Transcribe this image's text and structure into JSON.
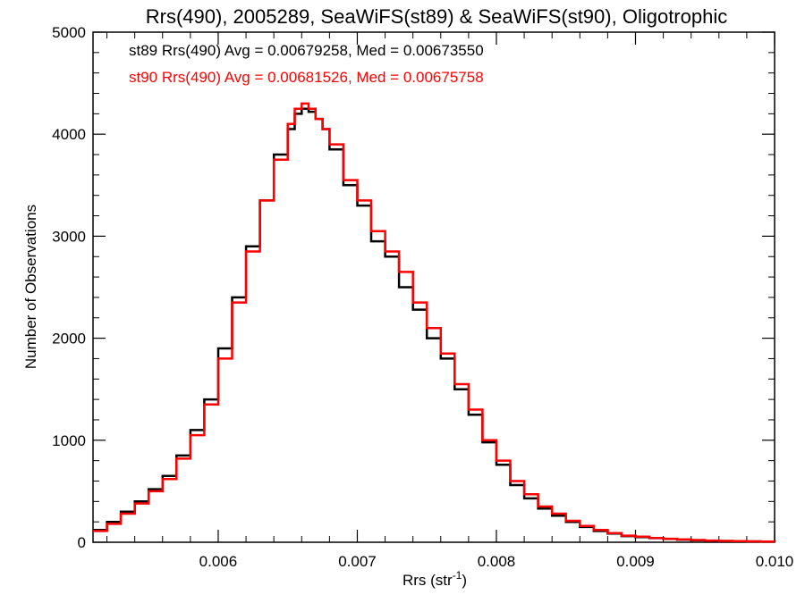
{
  "chart_data": {
    "type": "line",
    "step": true,
    "title": "Rrs(490), 2005289, SeaWiFS(st89) & SeaWiFS(st90), Oligotrophic",
    "xlabel": "Rrs (str",
    "xlabel_sup": "-1",
    "xlabel_end": ")",
    "ylabel": "Number of Observations",
    "xlim": [
      0.0051,
      0.01
    ],
    "ylim": [
      0,
      5000
    ],
    "x_ticks": [
      0.006,
      0.007,
      0.008,
      0.009,
      0.01
    ],
    "x_tick_labels": [
      "0.006",
      "0.007",
      "0.008",
      "0.009",
      "0.010"
    ],
    "y_ticks": [
      0,
      1000,
      2000,
      3000,
      4000,
      5000
    ],
    "y_tick_labels": [
      "0",
      "1000",
      "2000",
      "3000",
      "4000",
      "5000"
    ],
    "legend": [
      {
        "text": "st89 Rrs(490) Avg = 0.00679258, Med = 0.00673550",
        "color": "#000000"
      },
      {
        "text": "st90 Rrs(490) Avg = 0.00681526, Med = 0.00675758",
        "color": "#ff0000"
      }
    ],
    "series": [
      {
        "color": "#000000",
        "x": [
          0.0051,
          0.0052,
          0.0053,
          0.0054,
          0.0055,
          0.0056,
          0.0057,
          0.0058,
          0.0059,
          0.006,
          0.0061,
          0.0062,
          0.0063,
          0.0064,
          0.0065,
          0.00655,
          0.0066,
          0.00665,
          0.0067,
          0.00675,
          0.0068,
          0.0069,
          0.007,
          0.0071,
          0.0072,
          0.0073,
          0.0074,
          0.0075,
          0.0076,
          0.0077,
          0.0078,
          0.0079,
          0.008,
          0.0081,
          0.0082,
          0.0083,
          0.0084,
          0.0085,
          0.0086,
          0.0087,
          0.0088,
          0.0089,
          0.009,
          0.0091,
          0.0092,
          0.0093,
          0.0094,
          0.0095,
          0.0096,
          0.0097,
          0.0098,
          0.0099,
          0.01
        ],
        "y": [
          120,
          200,
          300,
          400,
          520,
          650,
          850,
          1100,
          1400,
          1900,
          2400,
          2900,
          3350,
          3800,
          4050,
          4200,
          4250,
          4220,
          4150,
          4050,
          3850,
          3500,
          3300,
          2950,
          2800,
          2500,
          2280,
          2000,
          1800,
          1500,
          1250,
          980,
          760,
          560,
          430,
          330,
          260,
          200,
          150,
          110,
          85,
          60,
          50,
          40,
          32,
          25,
          20,
          16,
          12,
          10,
          8,
          6,
          5
        ]
      },
      {
        "color": "#ff0000",
        "x": [
          0.0051,
          0.0052,
          0.0053,
          0.0054,
          0.0055,
          0.0056,
          0.0057,
          0.0058,
          0.0059,
          0.006,
          0.0061,
          0.0062,
          0.0063,
          0.0064,
          0.0065,
          0.00655,
          0.0066,
          0.00665,
          0.0067,
          0.00675,
          0.0068,
          0.0069,
          0.007,
          0.0071,
          0.0072,
          0.0073,
          0.0074,
          0.0075,
          0.0076,
          0.0077,
          0.0078,
          0.0079,
          0.008,
          0.0081,
          0.0082,
          0.0083,
          0.0084,
          0.0085,
          0.0086,
          0.0087,
          0.0088,
          0.0089,
          0.009,
          0.0091,
          0.0092,
          0.0093,
          0.0094,
          0.0095,
          0.0096,
          0.0097,
          0.0098,
          0.0099,
          0.01
        ],
        "y": [
          110,
          180,
          280,
          380,
          500,
          620,
          820,
          1050,
          1350,
          1800,
          2350,
          2850,
          3350,
          3750,
          4100,
          4250,
          4300,
          4250,
          4150,
          4050,
          3900,
          3550,
          3350,
          3050,
          2850,
          2650,
          2350,
          2100,
          1850,
          1550,
          1300,
          1000,
          800,
          600,
          470,
          350,
          280,
          210,
          160,
          120,
          90,
          65,
          55,
          42,
          34,
          27,
          22,
          17,
          13,
          11,
          9,
          7,
          6
        ]
      }
    ]
  }
}
